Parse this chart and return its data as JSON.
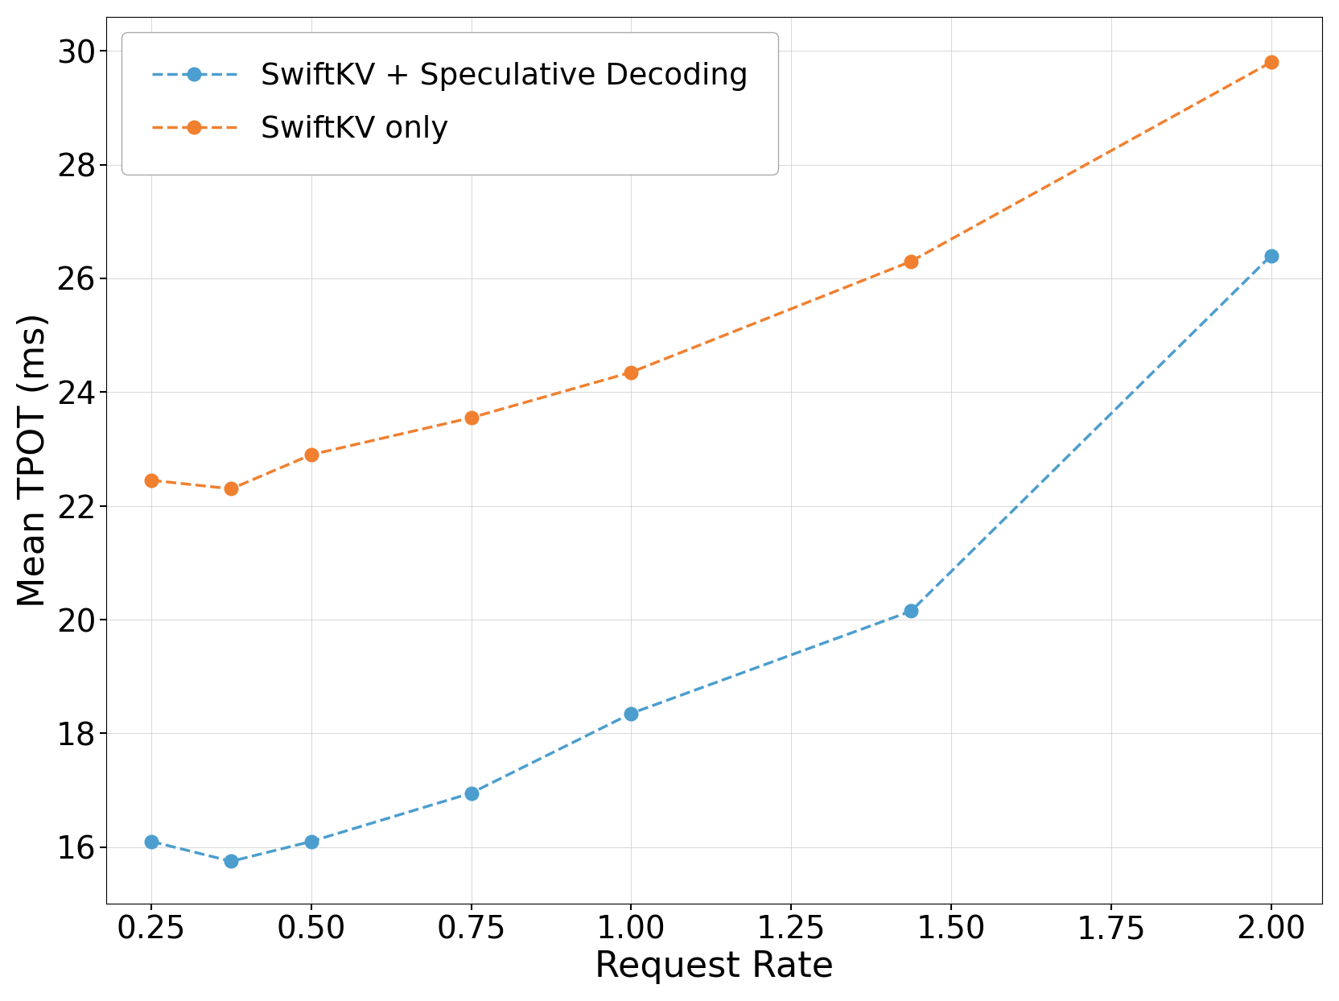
{
  "swiftkv_spec_x": [
    0.25,
    0.375,
    0.5,
    0.75,
    1.0,
    1.4375,
    2.0
  ],
  "swiftkv_spec_y": [
    16.1,
    15.75,
    16.1,
    16.95,
    18.35,
    20.15,
    26.4
  ],
  "swiftkv_only_x": [
    0.25,
    0.375,
    0.5,
    0.75,
    1.0,
    1.4375,
    2.0
  ],
  "swiftkv_only_y": [
    22.45,
    22.3,
    22.9,
    23.55,
    24.35,
    26.3,
    29.8
  ],
  "spec_color": "#4c9ece",
  "only_color": "#f08030",
  "spec_label": "SwiftKV + Speculative Decoding",
  "only_label": "SwiftKV only",
  "xlabel": "Request Rate",
  "ylabel": "Mean TPOT (ms)",
  "xlim": [
    0.18,
    2.08
  ],
  "ylim": [
    15.0,
    30.6
  ],
  "xticks": [
    0.25,
    0.5,
    0.75,
    1.0,
    1.25,
    1.5,
    1.75,
    2.0
  ],
  "yticks": [
    16,
    18,
    20,
    22,
    24,
    26,
    28,
    30
  ],
  "xlabel_fontsize": 32,
  "ylabel_fontsize": 32,
  "tick_fontsize": 28,
  "legend_fontsize": 27,
  "marker_size": 12,
  "line_width": 2.5,
  "background_color": "#ffffff",
  "grid_color": "#cccccc",
  "grid_alpha": 0.7
}
